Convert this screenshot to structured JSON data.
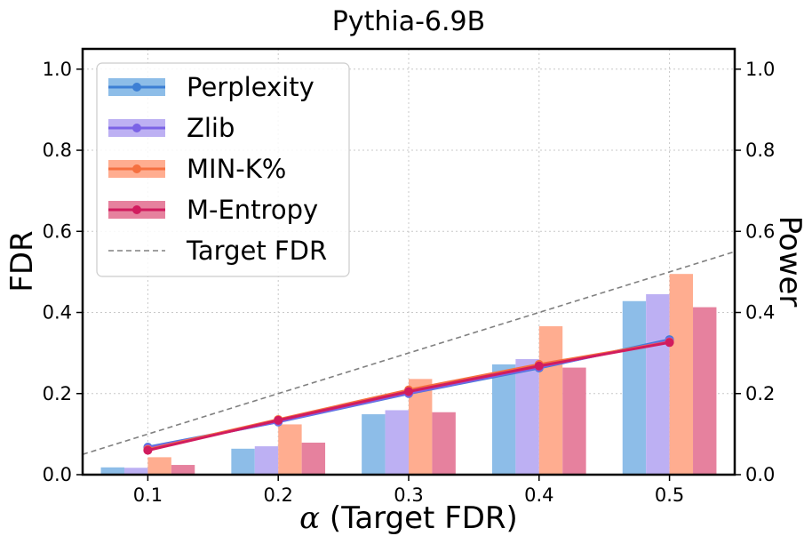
{
  "chart_data": {
    "type": "bar+line",
    "title": "Pythia-6.9B",
    "xlabel": "α (Target FDR)",
    "ylabel_left": "FDR",
    "ylabel_right": "Power",
    "x": [
      0.1,
      0.2,
      0.3,
      0.4,
      0.5
    ],
    "x_tick_labels": [
      "0.1",
      "0.2",
      "0.3",
      "0.4",
      "0.5"
    ],
    "xlim": [
      0.05,
      0.55
    ],
    "ylim": [
      0.0,
      1.05
    ],
    "y_ticks": [
      0.0,
      0.2,
      0.4,
      0.6,
      0.8,
      1.0
    ],
    "y_tick_labels": [
      "0.0",
      "0.2",
      "0.4",
      "0.6",
      "0.8",
      "1.0"
    ],
    "grid": true,
    "legend_position": "upper-left",
    "series": [
      {
        "name": "Perplexity",
        "line_color": "#3d7fd4",
        "bar_color": "#8dbde8",
        "fdr": [
          0.068,
          0.13,
          0.2,
          0.263,
          0.333
        ],
        "power": [
          0.018,
          0.064,
          0.149,
          0.272,
          0.428
        ]
      },
      {
        "name": "Zlib",
        "line_color": "#7b63e6",
        "bar_color": "#bdb0f3",
        "fdr": [
          0.066,
          0.131,
          0.201,
          0.265,
          0.33
        ],
        "power": [
          0.017,
          0.07,
          0.159,
          0.285,
          0.445
        ]
      },
      {
        "name": "MIN-K%",
        "line_color": "#f57040",
        "bar_color": "#ffad90",
        "fdr": [
          0.062,
          0.136,
          0.209,
          0.272,
          0.327
        ],
        "power": [
          0.043,
          0.124,
          0.236,
          0.366,
          0.495
        ]
      },
      {
        "name": "M-Entropy",
        "line_color": "#d11c5e",
        "bar_color": "#e6819e",
        "fdr": [
          0.06,
          0.134,
          0.205,
          0.268,
          0.326
        ],
        "power": [
          0.024,
          0.079,
          0.154,
          0.264,
          0.413
        ]
      }
    ],
    "target_line": {
      "name": "Target FDR",
      "color": "#808080",
      "style": "dashed",
      "x": [
        0.05,
        0.55
      ],
      "y": [
        0.05,
        0.55
      ]
    }
  }
}
